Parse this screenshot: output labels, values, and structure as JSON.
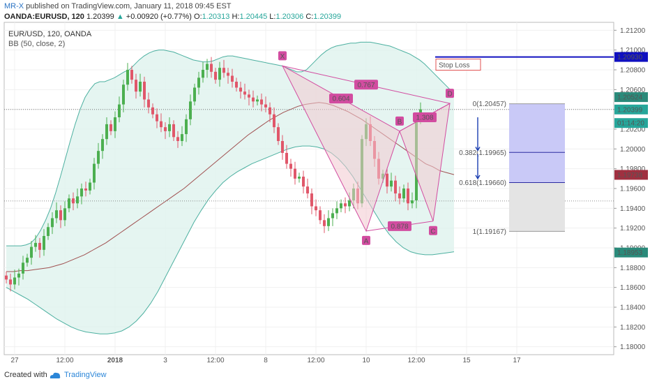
{
  "header": {
    "author": "MR-X",
    "published": "published on TradingView.com, January 11, 2018 09:45 EST",
    "symbol": "OANDA:EURUSD, 120",
    "last": "1.20399",
    "change_arrow": "▲",
    "change": "+0.00920 (+0.77%)",
    "o_label": "O:",
    "o": "1.20313",
    "h_label": "H:",
    "h": "1.20445",
    "l_label": "L:",
    "l": "1.20306",
    "c_label": "C:",
    "c": "1.20399"
  },
  "pane": {
    "title": "EUR/USD, 120, OANDA",
    "indicator": "BB (50, close, 2)"
  },
  "footer": {
    "created_with": "Created with",
    "brand": "TradingView"
  },
  "chart_data": {
    "type": "candlestick",
    "y_ticks": [
      "1.21200",
      "1.21000",
      "1.20800",
      "1.20600",
      "1.20400",
      "1.20200",
      "1.20000",
      "1.19800",
      "1.19600",
      "1.19400",
      "1.19200",
      "1.19000",
      "1.18800",
      "1.18600",
      "1.18400",
      "1.18200",
      "1.18000"
    ],
    "ylim": [
      1.1792,
      1.2128
    ],
    "x_ticks": [
      {
        "label": "27",
        "bar": 2
      },
      {
        "label": "12:00",
        "bar": 14
      },
      {
        "label": "2018",
        "bar": 26
      },
      {
        "label": "3",
        "bar": 38
      },
      {
        "label": "12:00",
        "bar": 50
      },
      {
        "label": "8",
        "bar": 62
      },
      {
        "label": "12:00",
        "bar": 74
      },
      {
        "label": "10",
        "bar": 86
      },
      {
        "label": "12:00",
        "bar": 98
      },
      {
        "label": "15",
        "bar": 110
      },
      {
        "label": "17",
        "bar": 122
      }
    ],
    "colors": {
      "up": "#4caf50",
      "down": "#e0576a",
      "bb_band": "#4cb0a0",
      "bb_fill": "#dff2ee",
      "bb_mid": "#a05050",
      "pattern": "#d24ca0",
      "pattern_fill": "#f3c9cf",
      "stop": "#1010c0",
      "target_fill": "#c9c9f7",
      "loss_fill": "#e4e4e4",
      "arrow": "#1a3db0",
      "ma_line": "#c09898"
    },
    "closes": [
      1.1868,
      1.1863,
      1.187,
      1.1874,
      1.1885,
      1.189,
      1.1901,
      1.1905,
      1.1898,
      1.1912,
      1.1921,
      1.193,
      1.1938,
      1.1928,
      1.194,
      1.195,
      1.1945,
      1.1952,
      1.196,
      1.1958,
      1.1966,
      1.1985,
      1.1998,
      1.201,
      1.2025,
      1.2018,
      1.2032,
      1.2045,
      1.2065,
      1.208,
      1.207,
      1.2058,
      1.2068,
      1.205,
      1.2042,
      1.2035,
      1.2028,
      1.2022,
      1.2018,
      1.2025,
      1.2012,
      1.2008,
      1.2015,
      1.203,
      1.2048,
      1.2062,
      1.2072,
      1.208,
      1.2086,
      1.2078,
      1.207,
      1.2082,
      1.2077,
      1.2074,
      1.2068,
      1.2062,
      1.2058,
      1.2055,
      1.2052,
      1.2048,
      1.205,
      1.2045,
      1.2042,
      1.2035,
      1.2022,
      1.2008,
      1.1996,
      1.1985,
      1.198,
      1.197,
      1.1972,
      1.1962,
      1.1955,
      1.1942,
      1.1938,
      1.1928,
      1.1922,
      1.193,
      1.1935,
      1.194,
      1.1945,
      1.1942,
      1.1948,
      1.196,
      1.1945,
      1.201,
      1.2025,
      1.2008,
      1.199,
      1.197,
      1.1975,
      1.1962,
      1.1968,
      1.1955,
      1.195,
      1.196,
      1.1945,
      1.1948,
      1.2031,
      1.204
    ],
    "opens": [
      1.1872,
      1.1868,
      1.1863,
      1.187,
      1.1874,
      1.1885,
      1.189,
      1.1901,
      1.1905,
      1.1898,
      1.1912,
      1.1921,
      1.193,
      1.1938,
      1.1928,
      1.194,
      1.195,
      1.1945,
      1.1952,
      1.196,
      1.1958,
      1.1966,
      1.1985,
      1.1998,
      1.201,
      1.2025,
      1.2018,
      1.2032,
      1.2045,
      1.2065,
      1.208,
      1.207,
      1.2058,
      1.2068,
      1.205,
      1.2042,
      1.2035,
      1.2028,
      1.2022,
      1.2018,
      1.2025,
      1.2012,
      1.2008,
      1.2015,
      1.203,
      1.2048,
      1.2062,
      1.2072,
      1.208,
      1.2086,
      1.2078,
      1.207,
      1.2082,
      1.2077,
      1.2074,
      1.2068,
      1.2062,
      1.2058,
      1.2055,
      1.2052,
      1.2048,
      1.205,
      1.2045,
      1.2042,
      1.2035,
      1.2022,
      1.2008,
      1.1996,
      1.1985,
      1.198,
      1.197,
      1.1972,
      1.1962,
      1.1955,
      1.1942,
      1.1938,
      1.1928,
      1.1922,
      1.193,
      1.1935,
      1.194,
      1.1945,
      1.1942,
      1.1948,
      1.196,
      1.1945,
      1.201,
      1.2025,
      1.2008,
      1.199,
      1.197,
      1.1975,
      1.1962,
      1.1968,
      1.1955,
      1.195,
      1.196,
      1.1945,
      1.1948,
      1.2031
    ],
    "bb_upper": [
      1.1902,
      1.1902,
      1.1902,
      1.1902,
      1.1903,
      1.1905,
      1.191,
      1.1918,
      1.1928,
      1.194,
      1.1955,
      1.1972,
      1.199,
      1.2008,
      1.2025,
      1.204,
      1.2052,
      1.206,
      1.2066,
      1.2068,
      1.2068,
      1.207,
      1.2072,
      1.2075,
      1.2078,
      1.208,
      1.2085,
      1.209,
      1.2094,
      1.2097,
      1.2099,
      1.21,
      1.21,
      1.2099,
      1.2098,
      1.2096,
      1.2094,
      1.2092,
      1.209,
      1.2089,
      1.2088,
      1.2088,
      1.2089,
      1.2091,
      1.2093,
      1.2094,
      1.2094,
      1.2093,
      1.2092,
      1.2091,
      1.209,
      1.2089,
      1.2088,
      1.2087,
      1.2086,
      1.2085,
      1.2084,
      1.2082,
      1.208,
      1.2078,
      1.2078,
      1.208,
      1.2085,
      1.209,
      1.2095,
      1.2099,
      1.2102,
      1.2104,
      1.2105,
      1.2106,
      1.2107,
      1.2107,
      1.2108,
      1.2108,
      1.2108,
      1.2107,
      1.2106,
      1.2105,
      1.2104,
      1.2102,
      1.21,
      1.2098,
      1.2096,
      1.2093,
      1.209,
      1.2086,
      1.2081,
      1.2076,
      1.2071,
      1.2066,
      1.2061,
      1.2056
    ],
    "bb_lower": [
      1.186,
      1.1856,
      1.1852,
      1.1848,
      1.1843,
      1.1838,
      1.1833,
      1.1828,
      1.1824,
      1.182,
      1.1817,
      1.1815,
      1.1814,
      1.1813,
      1.1813,
      1.1814,
      1.1816,
      1.182,
      1.1826,
      1.1834,
      1.1844,
      1.1856,
      1.187,
      1.1884,
      1.1898,
      1.1912,
      1.1926,
      1.1938,
      1.1949,
      1.1958,
      1.1966,
      1.1972,
      1.1977,
      1.1981,
      1.1985,
      1.1988,
      1.1991,
      1.1994,
      1.1997,
      1.2,
      1.2002,
      1.2003,
      1.2003,
      1.2002,
      1.2,
      1.1996,
      1.199,
      1.1982,
      1.1972,
      1.196,
      1.1948,
      1.1936,
      1.1924,
      1.1914,
      1.1906,
      1.19,
      1.1896,
      1.1894,
      1.1893,
      1.1893,
      1.1894,
      1.1895,
      1.1896
    ],
    "bb_basis": [
      1.1876,
      1.1876,
      1.1877,
      1.1877,
      1.1878,
      1.1879,
      1.188,
      1.1882,
      1.1884,
      1.1887,
      1.189,
      1.1893,
      1.1897,
      1.1901,
      1.1905,
      1.191,
      1.1915,
      1.192,
      1.1925,
      1.193,
      1.1935,
      1.194,
      1.1945,
      1.195,
      1.1955,
      1.196,
      1.1966,
      1.1972,
      1.1978,
      1.1984,
      1.199,
      1.1996,
      1.2002,
      1.2008,
      1.2014,
      1.2019,
      1.2024,
      1.2029,
      1.2033,
      1.2037,
      1.204,
      1.2043,
      1.2045,
      1.2046,
      1.2047,
      1.2046,
      1.2044,
      1.2041,
      1.2038,
      1.2034,
      1.203,
      1.2025,
      1.202,
      1.2015,
      1.201,
      1.2005,
      1.2,
      1.1995,
      1.199,
      1.1985,
      1.1982,
      1.1978,
      1.1976,
      1.1974
    ],
    "pattern_points": [
      {
        "label": "X",
        "bar": 66,
        "price": 1.2084
      },
      {
        "label": "A",
        "bar": 86,
        "price": 1.1917
      },
      {
        "label": "B",
        "bar": 94,
        "price": 1.2018
      },
      {
        "label": "C",
        "bar": 102,
        "price": 1.1927
      },
      {
        "label": "D",
        "bar": 106,
        "price": 1.2046
      }
    ],
    "ratios": [
      {
        "text": "0.767",
        "between": [
          "X",
          "D"
        ]
      },
      {
        "text": "0.604",
        "between": [
          "X",
          "B"
        ]
      },
      {
        "text": "0.878",
        "between": [
          "A",
          "C"
        ]
      },
      {
        "text": "1.308",
        "between": [
          "B",
          "D"
        ]
      }
    ],
    "fib_levels": [
      {
        "label": "0(1.20457)",
        "price": 1.20457
      },
      {
        "label": "0.382(1.19965)",
        "price": 1.19965
      },
      {
        "label": "0.618(1.19660)",
        "price": 1.1966
      },
      {
        "label": "1(1.19167)",
        "price": 1.19167
      }
    ],
    "stop_loss": {
      "label": "Stop Loss",
      "price": 1.2093
    },
    "price_labels": [
      {
        "text": "1.20930",
        "price": 1.2093,
        "color": "#1010c0"
      },
      {
        "text": "1.20524",
        "price": 1.20524,
        "color": "#2a8a7a"
      },
      {
        "text": "1.20399",
        "price": 1.20399,
        "color": "#26a69a"
      },
      {
        "text": "01:14:20",
        "price": 1.20262,
        "color": "#26a69a"
      },
      {
        "text": "1.19738",
        "price": 1.19738,
        "color": "#a03040"
      },
      {
        "text": "1.18953",
        "price": 1.18953,
        "color": "#2a8a7a"
      }
    ],
    "dotted_levels": [
      1.20399,
      1.19474
    ]
  }
}
